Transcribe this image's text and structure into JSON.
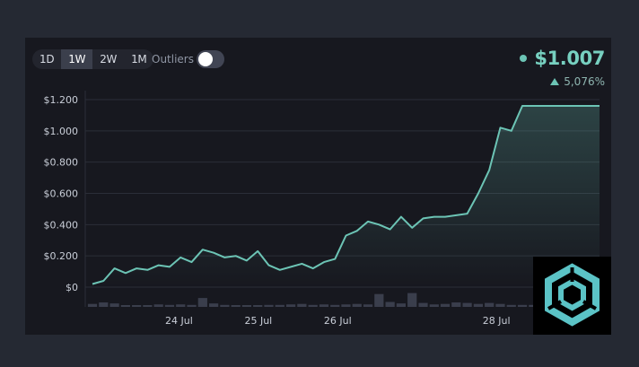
{
  "controls": {
    "ranges": [
      "1D",
      "1W",
      "2W",
      "1M"
    ],
    "active_range": "1W",
    "outliers_label": "Outliers",
    "outliers_enabled": false
  },
  "price": {
    "value": "$1.007",
    "change": "5,076%",
    "accent_color": "#6cc4b5"
  },
  "icons": {
    "trend_icon": "up-triangle-icon",
    "logo": "hexagon-logo-icon"
  },
  "chart_data": {
    "type": "area",
    "y_tick_labels": [
      "$1.200",
      "$1.000",
      "$0.800",
      "$0.600",
      "$0.400",
      "$0.200",
      "$0"
    ],
    "y_ticks": [
      1.2,
      1.0,
      0.8,
      0.6,
      0.4,
      0.2,
      0
    ],
    "ylim": [
      0,
      1.2
    ],
    "x_labels": [
      {
        "label": "24 Jul",
        "x": 1
      },
      {
        "label": "25 Jul",
        "x": 2
      },
      {
        "label": "26 Jul",
        "x": 3
      },
      {
        "label": "28 Jul",
        "x": 5
      }
    ],
    "x": [
      0.0,
      0.139,
      0.278,
      0.417,
      0.556,
      0.694,
      0.833,
      0.972,
      1.111,
      1.25,
      1.389,
      1.528,
      1.667,
      1.806,
      1.944,
      2.083,
      2.222,
      2.361,
      2.5,
      2.639,
      2.778,
      2.917,
      3.056,
      3.194,
      3.333,
      3.472,
      3.611,
      3.75,
      3.889,
      4.028,
      4.167,
      4.306,
      4.444,
      4.583,
      4.722,
      4.861,
      5.0,
      5.139,
      5.278,
      5.417,
      5.556,
      5.694,
      5.833,
      5.972,
      6.111,
      6.25,
      6.389
    ],
    "values": [
      0.02,
      0.04,
      0.12,
      0.09,
      0.12,
      0.11,
      0.14,
      0.13,
      0.19,
      0.16,
      0.24,
      0.22,
      0.19,
      0.2,
      0.17,
      0.23,
      0.14,
      0.11,
      0.13,
      0.15,
      0.12,
      0.16,
      0.18,
      0.33,
      0.36,
      0.42,
      0.4,
      0.37,
      0.45,
      0.38,
      0.44,
      0.45,
      0.45,
      0.46,
      0.47,
      0.6,
      0.75,
      1.02,
      1.0,
      1.16,
      1.16,
      1.16,
      1.16,
      1.16,
      1.16,
      1.16,
      1.16
    ],
    "volume": [
      0.3,
      0.45,
      0.35,
      0.15,
      0.15,
      0.15,
      0.25,
      0.2,
      0.25,
      0.2,
      0.9,
      0.35,
      0.2,
      0.15,
      0.15,
      0.15,
      0.2,
      0.2,
      0.25,
      0.3,
      0.2,
      0.25,
      0.2,
      0.25,
      0.3,
      0.25,
      1.3,
      0.5,
      0.35,
      1.4,
      0.4,
      0.25,
      0.3,
      0.45,
      0.4,
      0.3,
      0.4,
      0.3,
      0.2,
      0.2,
      0.2,
      0.2,
      0.2,
      0.2,
      0.2,
      0.2,
      0.2
    ],
    "line_color": "#6cc4b5",
    "grid": true
  }
}
